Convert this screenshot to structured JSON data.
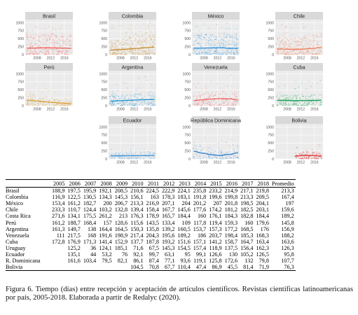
{
  "panels": [
    {
      "title": "Brasil",
      "color": "#f0605d",
      "curve": [
        200,
        205,
        215,
        210,
        205,
        195
      ]
    },
    {
      "title": "Colombia",
      "color": "#c98a2a",
      "curve": [
        140,
        155,
        175,
        195,
        215,
        235
      ]
    },
    {
      "title": "México",
      "color": "#2a8fd8",
      "curve": [
        200,
        205,
        210,
        215,
        200,
        195
      ]
    },
    {
      "title": "Chile",
      "color": "#f07a5a",
      "curve": [
        180,
        170,
        165,
        175,
        195,
        225
      ]
    },
    {
      "title": "Perú",
      "color": "#d9a03a",
      "curve": [
        175,
        150,
        125,
        100,
        80,
        65
      ]
    },
    {
      "title": "Argentina",
      "color": "#1f8fd0",
      "curve": [
        145,
        155,
        170,
        180,
        190,
        195
      ]
    },
    {
      "title": "Venezuela",
      "color": "#f06060",
      "curve": [
        160,
        185,
        210,
        225,
        215,
        185
      ]
    },
    {
      "title": "Cuba",
      "color": "#10a050",
      "curve": [
        170,
        165,
        160,
        160,
        165,
        170
      ]
    },
    {
      "title": "Ecuador",
      "color": "#3a8fd8",
      "curve": [
        95,
        98,
        100,
        103,
        105,
        108
      ]
    },
    {
      "title": "República Dominicana",
      "color": "#2a7fd0",
      "curve": [
        240,
        180,
        130,
        110,
        140,
        195
      ]
    },
    {
      "title": "Bolivia",
      "color": "#e03030",
      "curve": [
        null,
        null,
        85,
        110,
        105,
        90
      ]
    }
  ],
  "y_ticks": [
    "0",
    "250",
    "500",
    "750",
    "1000"
  ],
  "x_ticks": [
    "2008",
    "2012",
    "2016"
  ],
  "table": {
    "headers": [
      "2005",
      "2006",
      "2007",
      "2008",
      "2009",
      "2010",
      "2011",
      "2012",
      "2013",
      "2014",
      "2015",
      "2016",
      "2017",
      "2018",
      "Promedio"
    ],
    "rows": [
      {
        "country": "Brasil",
        "values": [
          "188,9",
          "197,5",
          "195,9",
          "192,1",
          "208,5",
          "210,6",
          "224,5",
          "222,9",
          "224,1",
          "235,8",
          "233,2",
          "214,9",
          "217,1",
          "219,8",
          "213,3"
        ]
      },
      {
        "country": "Colombia",
        "values": [
          "116,9",
          "122,5",
          "130,5",
          "134,3",
          "145,3",
          "156,1",
          "163",
          "178,3",
          "183,1",
          "191,8",
          "199,6",
          "199,8",
          "213,3",
          "209,5",
          "167,4"
        ]
      },
      {
        "country": "México",
        "values": [
          "153,4",
          "161,2",
          "182,7",
          "200",
          "206,7",
          "213,3",
          "216,9",
          "207,1",
          "204",
          "201,2",
          "207",
          "201,8",
          "198,5",
          "204,1",
          "197"
        ]
      },
      {
        "country": "Chile",
        "values": [
          "233,3",
          "110,7",
          "124,4",
          "103,2",
          "132,8",
          "139,4",
          "158,4",
          "167,7",
          "145,6",
          "177,6",
          "174,2",
          "181,2",
          "182,5",
          "203,1",
          "159,6"
        ]
      },
      {
        "country": "Costa Rica",
        "values": [
          "271,6",
          "134,1",
          "175,5",
          "261,2",
          "213",
          "176,3",
          "178,9",
          "165,7",
          "184,4",
          "160",
          "176,1",
          "184,3",
          "182,8",
          "184,4",
          "189,2"
        ]
      },
      {
        "country": "Perú",
        "values": [
          "161,2",
          "188,7",
          "168,4",
          "157",
          "128,6",
          "115,6",
          "143,5",
          "133,4",
          "109",
          "117,8",
          "119,4",
          "159,3",
          "160",
          "179,6",
          "145,8"
        ]
      },
      {
        "country": "Argentina",
        "values": [
          "161,3",
          "149,7",
          "138",
          "164,4",
          "164,5",
          "150,3",
          "135,8",
          "139,2",
          "160,5",
          "153,7",
          "157,3",
          "177,2",
          "168,5",
          "176",
          "156,9"
        ]
      },
      {
        "country": "Venezuela",
        "values": [
          "111",
          "217,5",
          "168",
          "191,6",
          "198,9",
          "217,4",
          "204,3",
          "195,6",
          "189,2",
          "186",
          "203,7",
          "198,4",
          "185,3",
          "168,3",
          "188,2"
        ]
      },
      {
        "country": "Cuba",
        "values": [
          "172,8",
          "176,9",
          "171,3",
          "141,4",
          "152,9",
          "137,7",
          "187,8",
          "193,2",
          "151,6",
          "157,1",
          "141,2",
          "158,7",
          "164,7",
          "163,4",
          "163,6"
        ]
      },
      {
        "country": "Uruguay",
        "values": [
          "",
          "125,2",
          "36",
          "124,1",
          "185,1",
          "71,6",
          "67,5",
          "145,3",
          "154,5",
          "157,4",
          "118,9",
          "137,5",
          "156,4",
          "162,3",
          "126,3"
        ]
      },
      {
        "country": "Ecuador",
        "values": [
          "",
          "135,1",
          "44",
          "53,2",
          "76",
          "92,1",
          "99,7",
          "63,1",
          "95",
          "99,1",
          "126,6",
          "130",
          "105,2",
          "126,5",
          "95,8"
        ]
      },
      {
        "country": "R. Dominicana",
        "values": [
          "",
          "161,6",
          "103,4",
          "79,5",
          "82,1",
          "86,1",
          "87,4",
          "77,1",
          "93,6",
          "119,1",
          "125,8",
          "172,6",
          "132",
          "79,8",
          "107,7"
        ]
      },
      {
        "country": "Bolivia",
        "values": [
          "",
          "",
          "",
          "",
          "",
          "104,5",
          "70,8",
          "67,7",
          "110,4",
          "47,4",
          "86,9",
          "45,5",
          "81,4",
          "71,9",
          "76,3"
        ]
      }
    ]
  },
  "caption": "Figura 6. Tiempo (días) entre recepción y aceptación de artículos científicos. Revistas científicas latinoamericanas por país, 2005-2018. Elaborada a partir de Redalyc (2020)."
}
